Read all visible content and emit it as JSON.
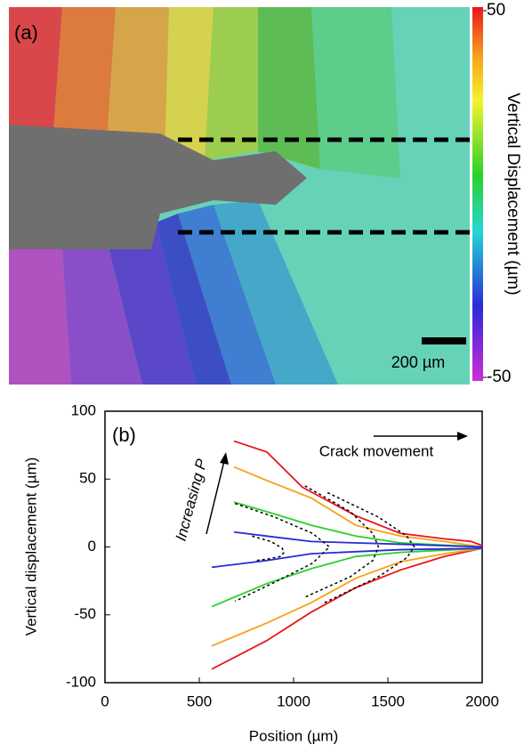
{
  "chart_data": [
    {
      "type": "image",
      "label": "(a)",
      "scale_bar": "200 µm",
      "colorbar": {
        "label": "Vertical Displacement (µm)",
        "ylim": [
          -50,
          50
        ],
        "yticks": [
          50,
          -50
        ]
      }
    },
    {
      "type": "line",
      "label": "(b)",
      "x_label": "Position (µm)",
      "y_label": "Vertical displacement  (µm)",
      "annotations": [
        "Increasing P",
        "Crack movement"
      ],
      "xlim": [
        0,
        2000
      ],
      "ylim": [
        -100,
        100
      ],
      "xticks": [
        0,
        500,
        1000,
        1500,
        2000
      ],
      "yticks": [
        -100,
        -50,
        0,
        50,
        100
      ],
      "series": [
        {
          "color": "#e8161b",
          "x": [
            684,
            858,
            1047,
            1330,
            1566,
            1800,
            1943,
            2000
          ],
          "values": [
            78,
            70,
            44,
            23,
            10,
            6,
            4,
            1
          ]
        },
        {
          "color": "#e8161b",
          "x": [
            566,
            858,
            1094,
            1330,
            1566,
            1800,
            2000
          ],
          "values": [
            -90,
            -69,
            -48,
            -30,
            -17,
            -7,
            -1
          ]
        },
        {
          "color": "#f7a11a",
          "x": [
            684,
            858,
            1094,
            1330,
            1566,
            1800,
            2000
          ],
          "values": [
            59,
            49,
            36,
            16,
            8,
            4,
            0
          ]
        },
        {
          "color": "#f7a11a",
          "x": [
            566,
            858,
            1094,
            1330,
            1566,
            1800,
            2000
          ],
          "values": [
            -73,
            -56,
            -41,
            -23,
            -11,
            -5,
            -1
          ]
        },
        {
          "color": "#2bd12b",
          "x": [
            684,
            858,
            1094,
            1330,
            1566,
            2000
          ],
          "values": [
            33,
            26,
            16,
            8,
            3,
            0
          ]
        },
        {
          "color": "#2bd12b",
          "x": [
            566,
            858,
            1094,
            1330,
            1566,
            2000
          ],
          "values": [
            -44,
            -27,
            -16,
            -7,
            -4,
            -1
          ]
        },
        {
          "color": "#2a2ad8",
          "x": [
            684,
            858,
            1094,
            1566,
            2000
          ],
          "values": [
            11,
            8,
            4,
            2,
            0
          ]
        },
        {
          "color": "#2a2ad8",
          "x": [
            566,
            858,
            1094,
            1566,
            2000
          ],
          "values": [
            -15,
            -10,
            -5,
            -2,
            -1
          ]
        },
        {
          "color": "#000000",
          "dash": true,
          "x": [
            780,
            880,
            940,
            950,
            930,
            860,
            800
          ],
          "values": [
            8,
            4,
            -1,
            -4,
            -7,
            -9,
            -10
          ]
        },
        {
          "color": "#000000",
          "dash": true,
          "x": [
            690,
            900,
            1100,
            1190,
            1100,
            900,
            690
          ],
          "values": [
            32,
            22,
            10,
            0,
            -12,
            -26,
            -40
          ]
        },
        {
          "color": "#000000",
          "dash": true,
          "x": [
            1060,
            1300,
            1420,
            1450,
            1420,
            1300,
            1060
          ],
          "values": [
            45,
            26,
            10,
            0,
            -10,
            -22,
            -37
          ]
        },
        {
          "color": "#000000",
          "dash": true,
          "x": [
            1180,
            1450,
            1600,
            1640,
            1600,
            1450,
            1150
          ],
          "values": [
            40,
            22,
            8,
            0,
            -8,
            -22,
            -42
          ]
        }
      ]
    }
  ]
}
